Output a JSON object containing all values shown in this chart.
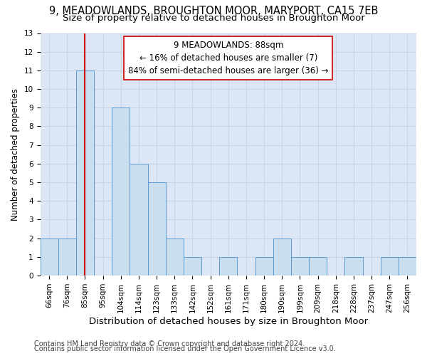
{
  "title": "9, MEADOWLANDS, BROUGHTON MOOR, MARYPORT, CA15 7EB",
  "subtitle": "Size of property relative to detached houses in Broughton Moor",
  "xlabel": "Distribution of detached houses by size in Broughton Moor",
  "ylabel": "Number of detached properties",
  "categories": [
    "66sqm",
    "76sqm",
    "85sqm",
    "95sqm",
    "104sqm",
    "114sqm",
    "123sqm",
    "133sqm",
    "142sqm",
    "152sqm",
    "161sqm",
    "171sqm",
    "180sqm",
    "190sqm",
    "199sqm",
    "209sqm",
    "218sqm",
    "228sqm",
    "237sqm",
    "247sqm",
    "256sqm"
  ],
  "values": [
    2,
    2,
    11,
    0,
    9,
    6,
    5,
    2,
    1,
    0,
    1,
    0,
    1,
    2,
    1,
    1,
    0,
    1,
    0,
    1,
    1
  ],
  "bar_color": "#c9dff0",
  "bar_edge_color": "#5b9bd5",
  "subject_index": 2,
  "subject_line_color": "#cc0000",
  "annotation_line1": "9 MEADOWLANDS: 88sqm",
  "annotation_line2": "← 16% of detached houses are smaller (7)",
  "annotation_line3": "84% of semi-detached houses are larger (36) →",
  "annotation_box_edge_color": "#cc0000",
  "annotation_box_face_color": "#ffffff",
  "ylim": [
    0,
    13
  ],
  "yticks": [
    0,
    1,
    2,
    3,
    4,
    5,
    6,
    7,
    8,
    9,
    10,
    11,
    12,
    13
  ],
  "grid_color": "#c8d4e8",
  "background_color": "#dce6f5",
  "footer1": "Contains HM Land Registry data © Crown copyright and database right 2024.",
  "footer2": "Contains public sector information licensed under the Open Government Licence v3.0.",
  "title_fontsize": 10.5,
  "subtitle_fontsize": 9.5,
  "xlabel_fontsize": 9.5,
  "ylabel_fontsize": 8.5,
  "tick_fontsize": 7.5,
  "annotation_fontsize": 8.5,
  "footer_fontsize": 7.0
}
